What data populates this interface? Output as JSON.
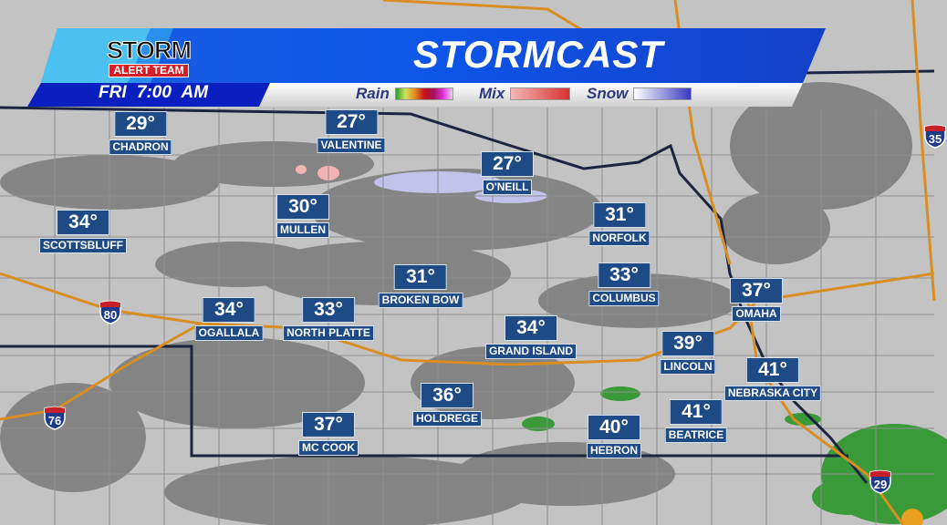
{
  "header": {
    "title": "STORMCAST",
    "logo_text_top": "STORM",
    "logo_text_bottom": "ALERT TEAM",
    "time": "FRI  7:00 AM"
  },
  "legend": [
    {
      "label": "Rain",
      "colors": [
        "#2e9a2e",
        "#cfe35a",
        "#e38a1e",
        "#c8101a",
        "#a0105a",
        "#e030d8",
        "#f0d0f0"
      ]
    },
    {
      "label": "Mix",
      "colors": [
        "#f5b8b8",
        "#d83030"
      ]
    },
    {
      "label": "Snow",
      "colors": [
        "#ffffff",
        "#3a3ac0"
      ]
    }
  ],
  "colors": {
    "banner_blue": "#1560e0",
    "label_navy": "#1e4a86",
    "road": "#d88e20",
    "map_gray": "#c3c3c3",
    "cloud_gray": "#777777"
  },
  "cities": [
    {
      "name": "CHADRON",
      "temp": "29°"
    },
    {
      "name": "VALENTINE",
      "temp": "27°"
    },
    {
      "name": "O'NEILL",
      "temp": "27°"
    },
    {
      "name": "MULLEN",
      "temp": "30°"
    },
    {
      "name": "SCOTTSBLUFF",
      "temp": "34°"
    },
    {
      "name": "NORFOLK",
      "temp": "31°"
    },
    {
      "name": "BROKEN BOW",
      "temp": "31°"
    },
    {
      "name": "COLUMBUS",
      "temp": "33°"
    },
    {
      "name": "OMAHA",
      "temp": "37°"
    },
    {
      "name": "OGALLALA",
      "temp": "34°"
    },
    {
      "name": "NORTH PLATTE",
      "temp": "33°"
    },
    {
      "name": "GRAND ISLAND",
      "temp": "34°"
    },
    {
      "name": "LINCOLN",
      "temp": "39°"
    },
    {
      "name": "NEBRASKA CITY",
      "temp": "41°"
    },
    {
      "name": "HOLDREGE",
      "temp": "36°"
    },
    {
      "name": "BEATRICE",
      "temp": "41°"
    },
    {
      "name": "HEBRON",
      "temp": "40°"
    },
    {
      "name": "MC COOK",
      "temp": "37°"
    }
  ],
  "interstates": [
    {
      "number": "80"
    },
    {
      "number": "76"
    },
    {
      "number": "29"
    },
    {
      "number": "35"
    }
  ]
}
